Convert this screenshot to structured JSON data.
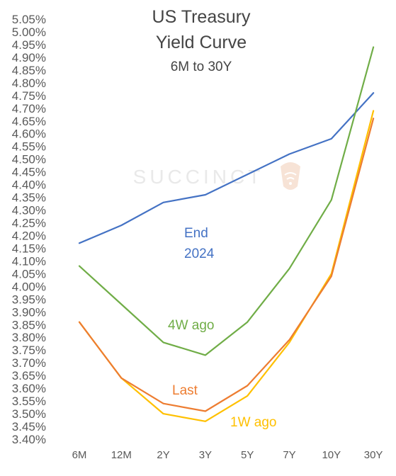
{
  "chart_data": {
    "type": "line",
    "title_lines": [
      "US Treasury",
      "Yield Curve"
    ],
    "subtitle": "6M to 30Y",
    "watermark": "SUCCINCT",
    "categories": [
      "6M",
      "12M",
      "2Y",
      "3Y",
      "5Y",
      "7Y",
      "10Y",
      "30Y"
    ],
    "ylim": [
      3.4,
      5.05
    ],
    "ytick_step": 0.05,
    "grid": false,
    "series": [
      {
        "name": "End 2024",
        "label_lines": [
          "End",
          "2024"
        ],
        "color": "#4472c4",
        "values": [
          4.17,
          4.24,
          4.33,
          4.36,
          4.44,
          4.52,
          4.58,
          4.76
        ]
      },
      {
        "name": "4W ago",
        "label_lines": [
          "4W ago"
        ],
        "color": "#70ad47",
        "values": [
          4.08,
          3.93,
          3.78,
          3.73,
          3.86,
          4.07,
          4.34,
          4.94
        ]
      },
      {
        "name": "Last",
        "label_lines": [
          "Last"
        ],
        "color": "#ed7d31",
        "values": [
          3.86,
          3.64,
          3.54,
          3.51,
          3.61,
          3.79,
          4.04,
          4.66
        ]
      },
      {
        "name": "1W ago",
        "label_lines": [
          "1W ago"
        ],
        "color": "#ffc000",
        "values": [
          3.86,
          3.64,
          3.5,
          3.47,
          3.57,
          3.78,
          4.05,
          4.69
        ]
      }
    ]
  }
}
